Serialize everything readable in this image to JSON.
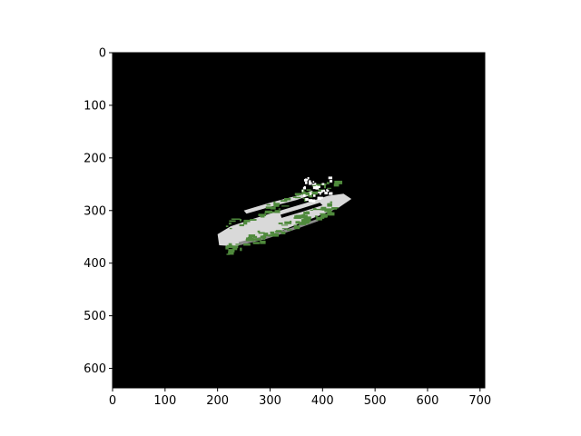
{
  "figure": {
    "image_extent": {
      "x_max": 709,
      "y_max": 637
    },
    "x_ticks": [
      0,
      100,
      200,
      300,
      400,
      500,
      600,
      700
    ],
    "y_ticks": [
      0,
      100,
      200,
      300,
      400,
      500,
      600
    ],
    "colors": {
      "background": "#000000",
      "object_light": "#d9d9d9",
      "object_shadow": "#8c8c8c",
      "vegetation": "#4f8a3c",
      "axes": "#000000"
    }
  }
}
